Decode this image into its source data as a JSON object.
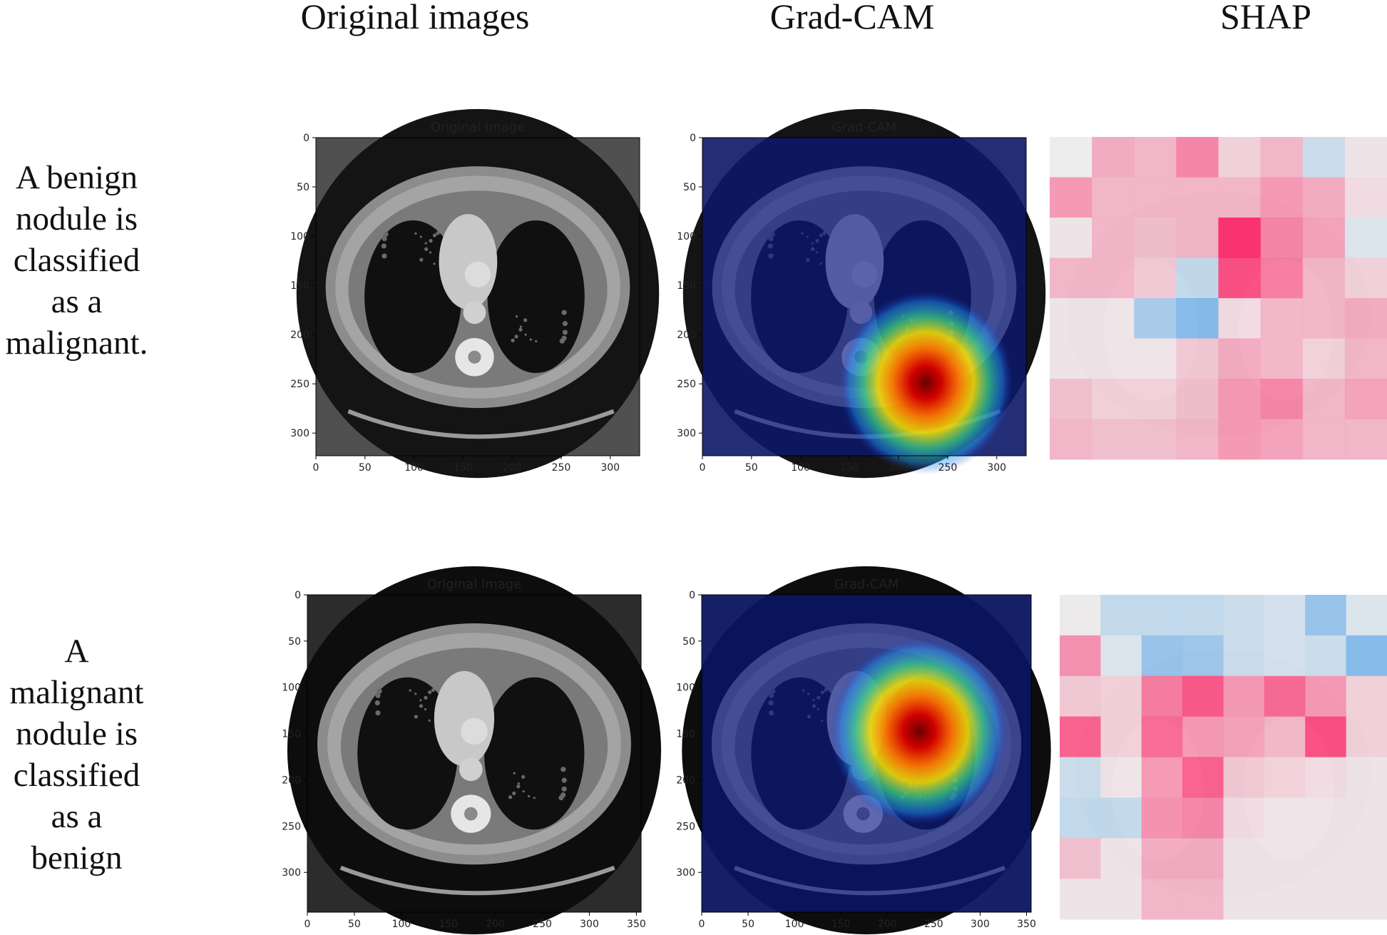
{
  "columns": [
    "Original images",
    "Grad-CAM",
    "SHAP"
  ],
  "rows": [
    {
      "label_lines": [
        "A benign",
        "nodule is",
        "classified",
        "as a",
        "malignant."
      ],
      "original": {
        "title": "Original Image",
        "extent": [
          330,
          323
        ],
        "xticks": [
          0,
          50,
          100,
          150,
          200,
          250,
          300
        ],
        "yticks": [
          0,
          50,
          100,
          150,
          200,
          250,
          300
        ]
      },
      "gradcam": {
        "title": "Grad-CAM",
        "extent": [
          330,
          323
        ],
        "xticks": [
          0,
          50,
          100,
          150,
          200,
          250,
          300
        ],
        "yticks": [
          0,
          50,
          100,
          150,
          200,
          250,
          300
        ],
        "hotspot": [
          0.69,
          0.77
        ]
      },
      "shap": {
        "cols": 8,
        "rows": 8,
        "cells": [
          [
            0.0,
            0.35,
            0.3,
            0.55,
            0.15,
            0.3,
            -0.2,
            0.05
          ],
          [
            0.45,
            0.3,
            0.3,
            0.3,
            0.3,
            0.45,
            0.35,
            0.1
          ],
          [
            0.05,
            0.3,
            0.25,
            0.3,
            1.0,
            0.55,
            0.4,
            -0.1
          ],
          [
            0.3,
            0.3,
            0.2,
            -0.25,
            0.85,
            0.6,
            0.3,
            0.15
          ],
          [
            0.05,
            0.05,
            -0.4,
            -0.6,
            0.1,
            0.3,
            0.3,
            0.35
          ],
          [
            0.05,
            0.05,
            0.05,
            0.2,
            0.35,
            0.3,
            0.15,
            0.3
          ],
          [
            0.25,
            0.15,
            0.15,
            0.25,
            0.45,
            0.55,
            0.3,
            0.4
          ],
          [
            0.3,
            0.25,
            0.25,
            0.3,
            0.45,
            0.4,
            0.3,
            0.3
          ]
        ]
      }
    },
    {
      "label_lines": [
        "A",
        "malignant",
        "nodule is",
        "classified",
        "as a",
        "benign"
      ],
      "original": {
        "title": "Original Image",
        "extent": [
          355,
          343
        ],
        "xticks": [
          0,
          50,
          100,
          150,
          200,
          250,
          300,
          350
        ],
        "yticks": [
          0,
          50,
          100,
          150,
          200,
          250,
          300
        ]
      },
      "gradcam": {
        "title": "Grad-CAM",
        "extent": [
          355,
          343
        ],
        "xticks": [
          0,
          50,
          100,
          150,
          200,
          250,
          300,
          350
        ],
        "yticks": [
          0,
          50,
          100,
          150,
          200,
          250,
          300
        ],
        "hotspot": [
          0.66,
          0.43
        ]
      },
      "shap": {
        "cols": 8,
        "rows": 8,
        "cells": [
          [
            0.02,
            -0.25,
            -0.25,
            -0.25,
            -0.2,
            -0.15,
            -0.5,
            -0.1
          ],
          [
            0.5,
            -0.1,
            -0.5,
            -0.45,
            -0.2,
            -0.15,
            -0.2,
            -0.6
          ],
          [
            0.2,
            0.15,
            0.6,
            0.8,
            0.45,
            0.7,
            0.45,
            0.15
          ],
          [
            0.75,
            0.15,
            0.7,
            0.45,
            0.4,
            0.3,
            0.85,
            0.15
          ],
          [
            -0.2,
            0.05,
            0.45,
            0.75,
            0.2,
            0.15,
            0.1,
            0.05
          ],
          [
            -0.25,
            -0.25,
            0.5,
            0.55,
            0.1,
            0.05,
            0.05,
            0.05
          ],
          [
            0.25,
            0.05,
            0.35,
            0.35,
            0.05,
            0.05,
            0.05,
            0.05
          ],
          [
            0.05,
            0.05,
            0.3,
            0.3,
            0.05,
            0.05,
            0.05,
            0.05
          ]
        ]
      }
    }
  ],
  "colors": {
    "positive": "#ff0d57",
    "negative": "#1e88e5"
  }
}
